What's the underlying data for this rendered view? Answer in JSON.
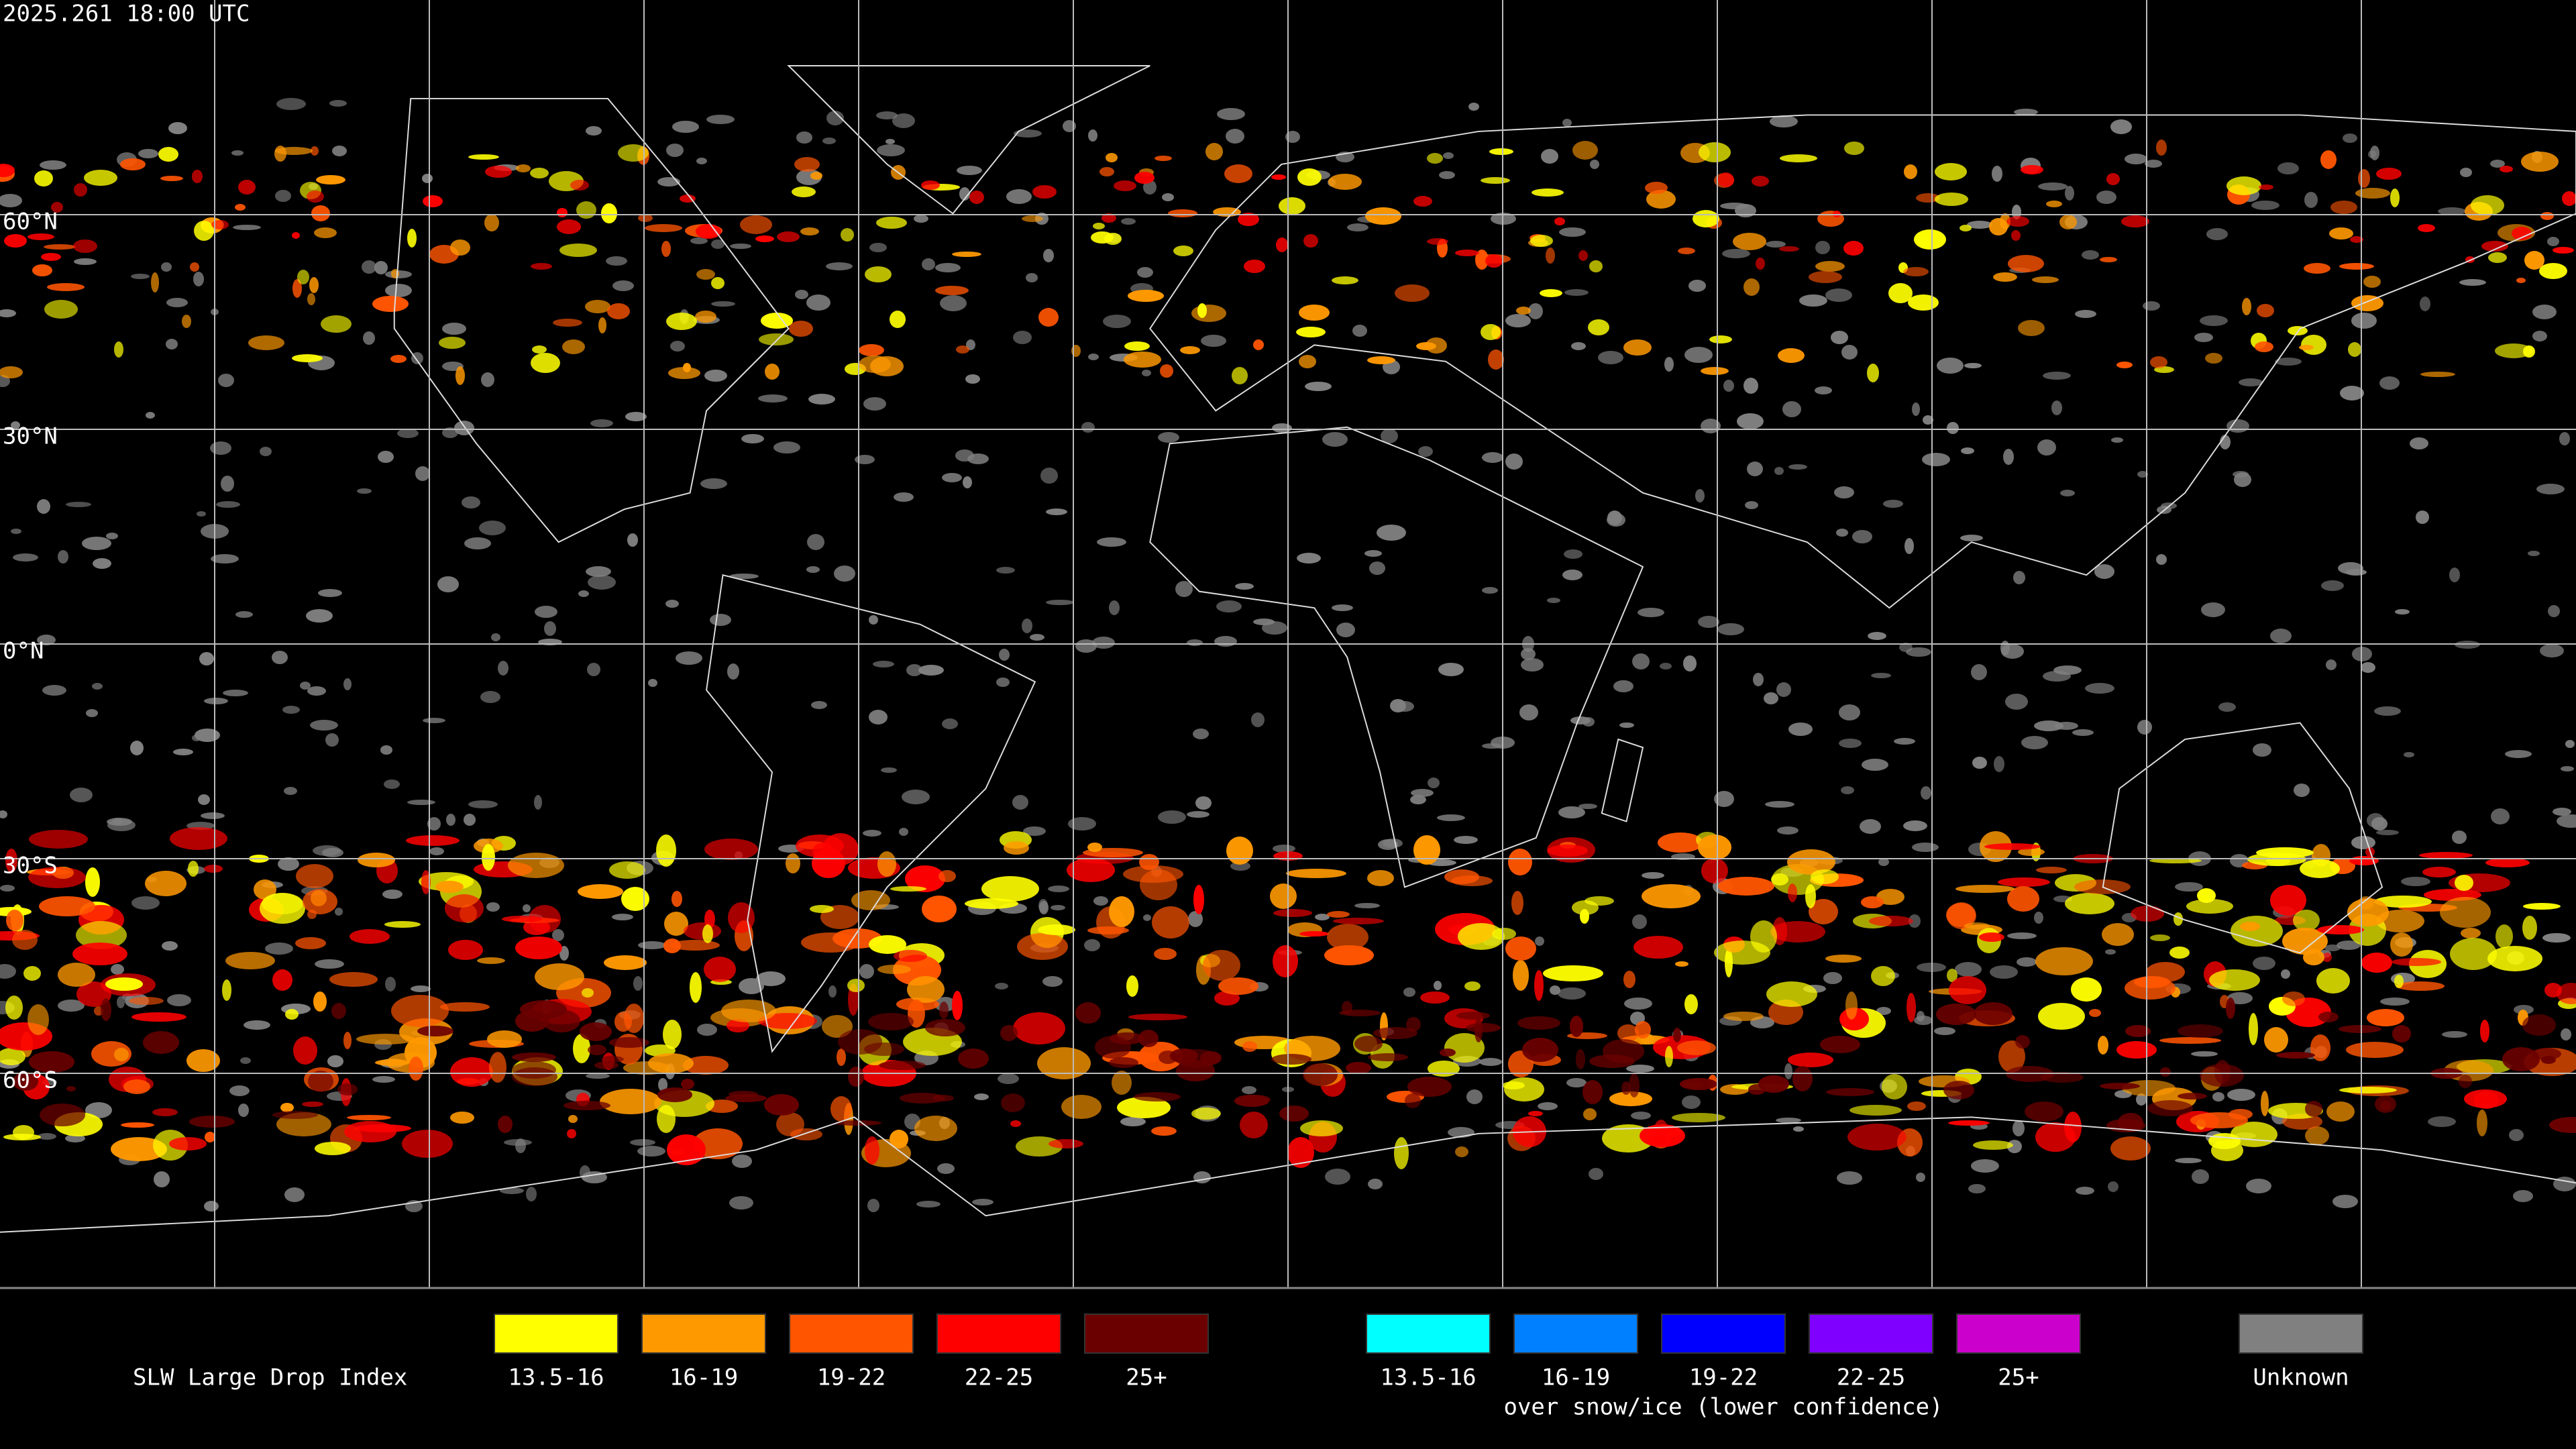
{
  "header": {
    "timestamp": "2025.261 18:00 UTC"
  },
  "map": {
    "lat_labels": [
      "60°N",
      "30°N",
      "0°N",
      "30°S",
      "60°S"
    ]
  },
  "legend": {
    "title": "SLW Large Drop Index",
    "groups": [
      {
        "items": [
          {
            "label": "13.5-16",
            "color": "#ffff00"
          },
          {
            "label": "16-19",
            "color": "#ff9900"
          },
          {
            "label": "19-22",
            "color": "#ff5500"
          },
          {
            "label": "22-25",
            "color": "#ff0000"
          },
          {
            "label": "25+",
            "color": "#6b0000"
          }
        ]
      },
      {
        "items": [
          {
            "label": "13.5-16",
            "color": "#00ffff"
          },
          {
            "label": "16-19",
            "color": "#0080ff"
          },
          {
            "label": "19-22",
            "color": "#0000ff"
          },
          {
            "label": "22-25",
            "color": "#8000ff"
          },
          {
            "label": "25+",
            "color": "#cc00cc"
          }
        ],
        "caption": "over snow/ice (lower confidence)"
      },
      {
        "items": [
          {
            "label": "Unknown",
            "color": "#808080"
          }
        ]
      }
    ]
  }
}
